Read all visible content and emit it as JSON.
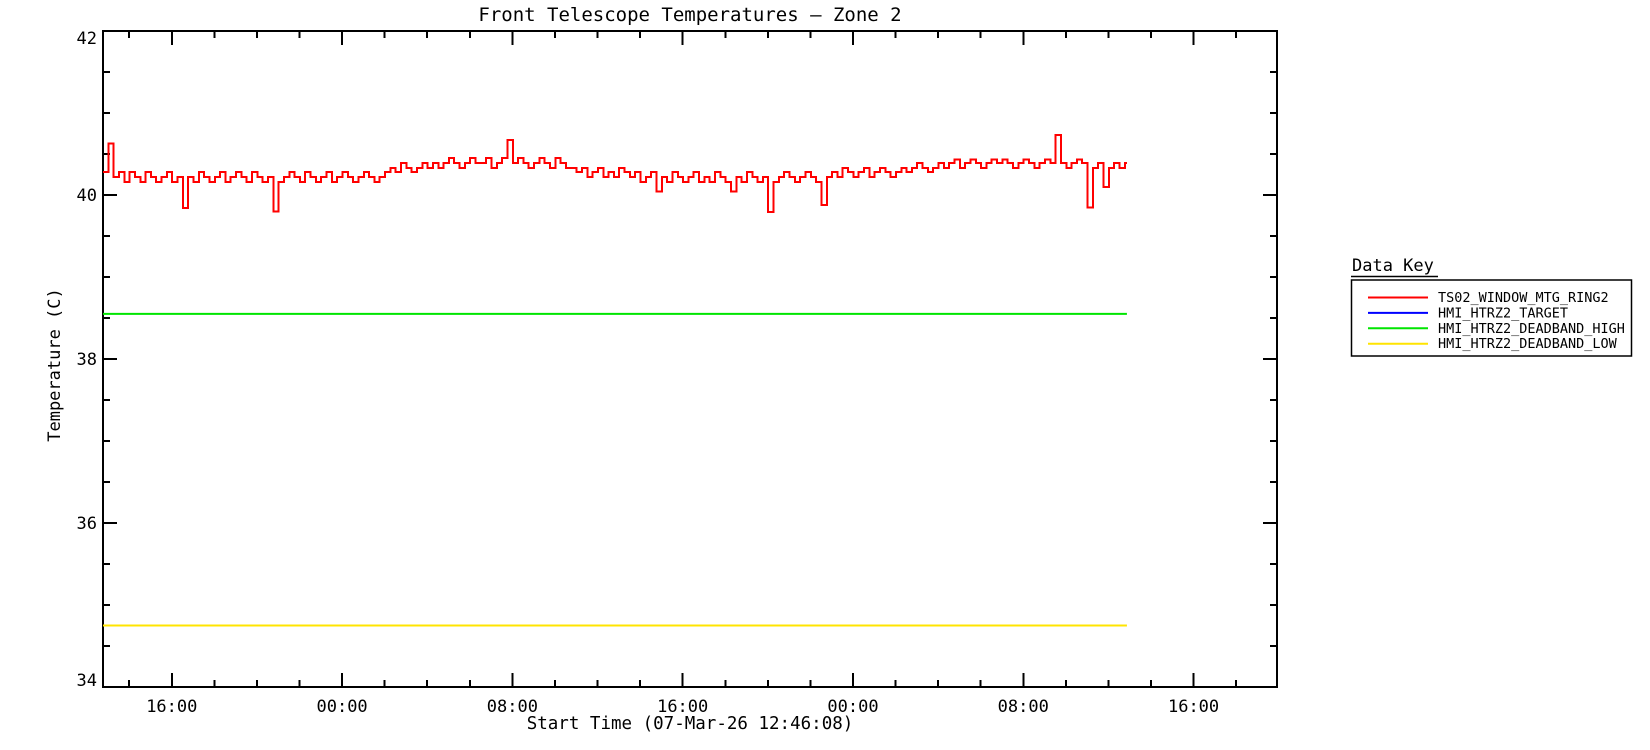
{
  "title": "Front Telescope Temperatures — Zone 2",
  "y_axis": {
    "label": "Temperature (C)",
    "min": 34,
    "max": 42,
    "major_ticks": [
      34,
      36,
      38,
      40,
      42
    ],
    "minor_step": 0.5
  },
  "x_axis": {
    "label": "Start Time (07-Mar-26 12:46:08)",
    "range_hours": [
      0,
      55.15
    ],
    "major_ticks": [
      {
        "t": 3.2311,
        "label": "16:00"
      },
      {
        "t": 11.2311,
        "label": "00:00"
      },
      {
        "t": 19.2311,
        "label": "08:00"
      },
      {
        "t": 27.2311,
        "label": "16:00"
      },
      {
        "t": 35.2311,
        "label": "00:00"
      },
      {
        "t": 43.2311,
        "label": "08:00"
      },
      {
        "t": 51.2311,
        "label": "16:00"
      }
    ],
    "minor_start_hours": 1.2311,
    "minor_step_hours": 2
  },
  "legend": {
    "title": "Data Key",
    "entries": [
      {
        "label": "TS02_WINDOW_MTG_RING2",
        "color": "#ff0000"
      },
      {
        "label": "HMI_HTRZ2_TARGET",
        "color": "#0000ff"
      },
      {
        "label": "HMI_HTRZ2_DEADBAND_HIGH",
        "color": "#00e500"
      },
      {
        "label": "HMI_HTRZ2_DEADBAND_LOW",
        "color": "#ffe400"
      }
    ]
  },
  "chart_data": {
    "type": "line",
    "title": "Front Telescope Temperatures — Zone 2",
    "xlabel": "Start Time (07-Mar-26 12:46:08)",
    "ylabel": "Temperature (C)",
    "ylim": [
      34,
      42
    ],
    "xlim_hours": [
      0,
      55.15
    ],
    "grid": false,
    "legend_position": "right-outside",
    "x_unit": "hours since 07-Mar-26 12:46:08",
    "series": [
      {
        "name": "TS02_WINDOW_MTG_RING2",
        "color": "#ff0000",
        "style": "step",
        "visible": true,
        "t_start": 0,
        "t_step": 0.25,
        "values": [
          40.28,
          40.63,
          40.22,
          40.28,
          40.16,
          40.28,
          40.22,
          40.16,
          40.28,
          40.22,
          40.16,
          40.22,
          40.28,
          40.16,
          40.22,
          39.84,
          40.22,
          40.16,
          40.28,
          40.22,
          40.16,
          40.22,
          40.28,
          40.16,
          40.22,
          40.28,
          40.22,
          40.16,
          40.28,
          40.22,
          40.16,
          40.22,
          39.8,
          40.16,
          40.22,
          40.28,
          40.22,
          40.16,
          40.28,
          40.22,
          40.16,
          40.22,
          40.28,
          40.16,
          40.22,
          40.28,
          40.22,
          40.16,
          40.22,
          40.28,
          40.22,
          40.16,
          40.22,
          40.28,
          40.33,
          40.28,
          40.39,
          40.33,
          40.28,
          40.33,
          40.39,
          40.33,
          40.39,
          40.33,
          40.39,
          40.45,
          40.39,
          40.33,
          40.39,
          40.45,
          40.39,
          40.39,
          40.45,
          40.33,
          40.39,
          40.45,
          40.67,
          40.39,
          40.45,
          40.39,
          40.33,
          40.39,
          40.45,
          40.39,
          40.33,
          40.45,
          40.39,
          40.33,
          40.33,
          40.28,
          40.33,
          40.22,
          40.28,
          40.33,
          40.22,
          40.28,
          40.22,
          40.33,
          40.28,
          40.22,
          40.28,
          40.16,
          40.22,
          40.28,
          40.04,
          40.22,
          40.16,
          40.28,
          40.22,
          40.16,
          40.22,
          40.28,
          40.16,
          40.22,
          40.16,
          40.28,
          40.22,
          40.16,
          40.04,
          40.22,
          40.16,
          40.28,
          40.22,
          40.16,
          40.22,
          39.79,
          40.16,
          40.22,
          40.28,
          40.22,
          40.16,
          40.22,
          40.28,
          40.22,
          40.16,
          39.88,
          40.22,
          40.28,
          40.22,
          40.33,
          40.28,
          40.22,
          40.28,
          40.33,
          40.22,
          40.28,
          40.33,
          40.28,
          40.22,
          40.28,
          40.33,
          40.28,
          40.33,
          40.39,
          40.33,
          40.28,
          40.33,
          40.39,
          40.33,
          40.39,
          40.43,
          40.33,
          40.39,
          40.43,
          40.39,
          40.33,
          40.39,
          40.43,
          40.39,
          40.43,
          40.39,
          40.33,
          40.39,
          40.43,
          40.39,
          40.33,
          40.39,
          40.43,
          40.39,
          40.73,
          40.39,
          40.33,
          40.39,
          40.43,
          40.39,
          39.85,
          40.33,
          40.39,
          40.1,
          40.33,
          40.39,
          40.33,
          40.39
        ]
      },
      {
        "name": "HMI_HTRZ2_TARGET",
        "color": "#0000ff",
        "style": "hline",
        "visible": false,
        "t_range": [
          0,
          48.1
        ],
        "value": null
      },
      {
        "name": "HMI_HTRZ2_DEADBAND_HIGH",
        "color": "#00e500",
        "style": "hline",
        "visible": true,
        "t_range": [
          0,
          48.1
        ],
        "value": 38.55
      },
      {
        "name": "HMI_HTRZ2_DEADBAND_LOW",
        "color": "#ffe400",
        "style": "hline",
        "visible": true,
        "t_range": [
          0,
          48.1
        ],
        "value": 34.75
      }
    ]
  }
}
